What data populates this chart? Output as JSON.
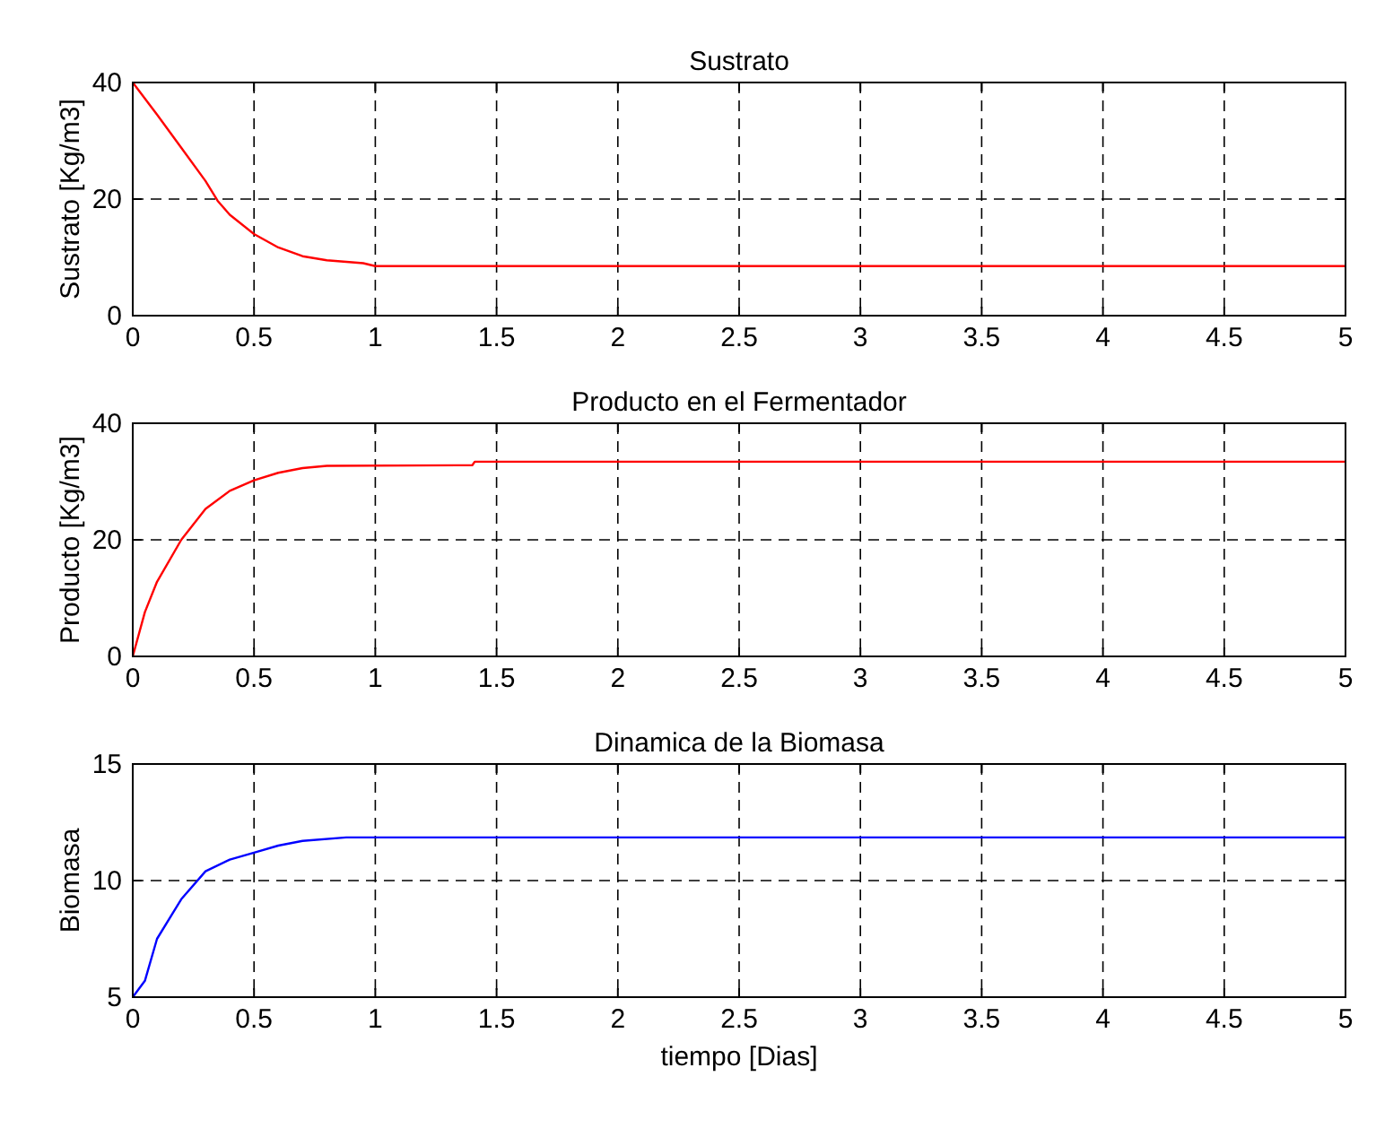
{
  "chart_data": [
    {
      "type": "line",
      "title": "Sustrato",
      "ylabel": "Sustrato [Kg/m3]",
      "xlim": [
        0,
        5
      ],
      "xticks": [
        0,
        0.5,
        1,
        1.5,
        2,
        2.5,
        3,
        3.5,
        4,
        4.5,
        5
      ],
      "ylim": [
        0,
        40
      ],
      "yticks": [
        0,
        20,
        40
      ],
      "grid": true,
      "series": [
        {
          "color": "#ff0000",
          "x": [
            0,
            0.1,
            0.2,
            0.3,
            0.35,
            0.4,
            0.5,
            0.6,
            0.7,
            0.8,
            0.95,
            1.0,
            5
          ],
          "values": [
            40,
            34.5,
            28.8,
            23.1,
            19.7,
            17.3,
            14,
            11.7,
            10.2,
            9.5,
            9,
            8.5,
            8.5
          ]
        }
      ]
    },
    {
      "type": "line",
      "title": "Producto en el Fermentador",
      "ylabel": "Producto [Kg/m3]",
      "xlim": [
        0,
        5
      ],
      "xticks": [
        0,
        0.5,
        1,
        1.5,
        2,
        2.5,
        3,
        3.5,
        4,
        4.5,
        5
      ],
      "ylim": [
        0,
        40
      ],
      "yticks": [
        0,
        20,
        40
      ],
      "grid": true,
      "series": [
        {
          "color": "#ff0000",
          "x": [
            0,
            0.05,
            0.1,
            0.2,
            0.3,
            0.4,
            0.5,
            0.6,
            0.7,
            0.8,
            1.4,
            1.41,
            5
          ],
          "values": [
            0,
            7.6,
            12.8,
            20,
            25.3,
            28.4,
            30.2,
            31.5,
            32.3,
            32.7,
            32.8,
            33.4,
            33.4
          ]
        }
      ]
    },
    {
      "type": "line",
      "title": "Dinamica de la Biomasa",
      "ylabel": "Biomasa",
      "xlabel": "tiempo [Dias]",
      "xlim": [
        0,
        5
      ],
      "xticks": [
        0,
        0.5,
        1,
        1.5,
        2,
        2.5,
        3,
        3.5,
        4,
        4.5,
        5
      ],
      "ylim": [
        5,
        15
      ],
      "yticks": [
        5,
        10,
        15
      ],
      "grid": true,
      "series": [
        {
          "color": "#0000ff",
          "x": [
            0,
            0.05,
            0.1,
            0.2,
            0.3,
            0.4,
            0.5,
            0.6,
            0.7,
            0.88,
            5
          ],
          "values": [
            5,
            5.7,
            7.5,
            9.2,
            10.4,
            10.9,
            11.2,
            11.5,
            11.7,
            11.85,
            11.85
          ]
        }
      ]
    }
  ]
}
